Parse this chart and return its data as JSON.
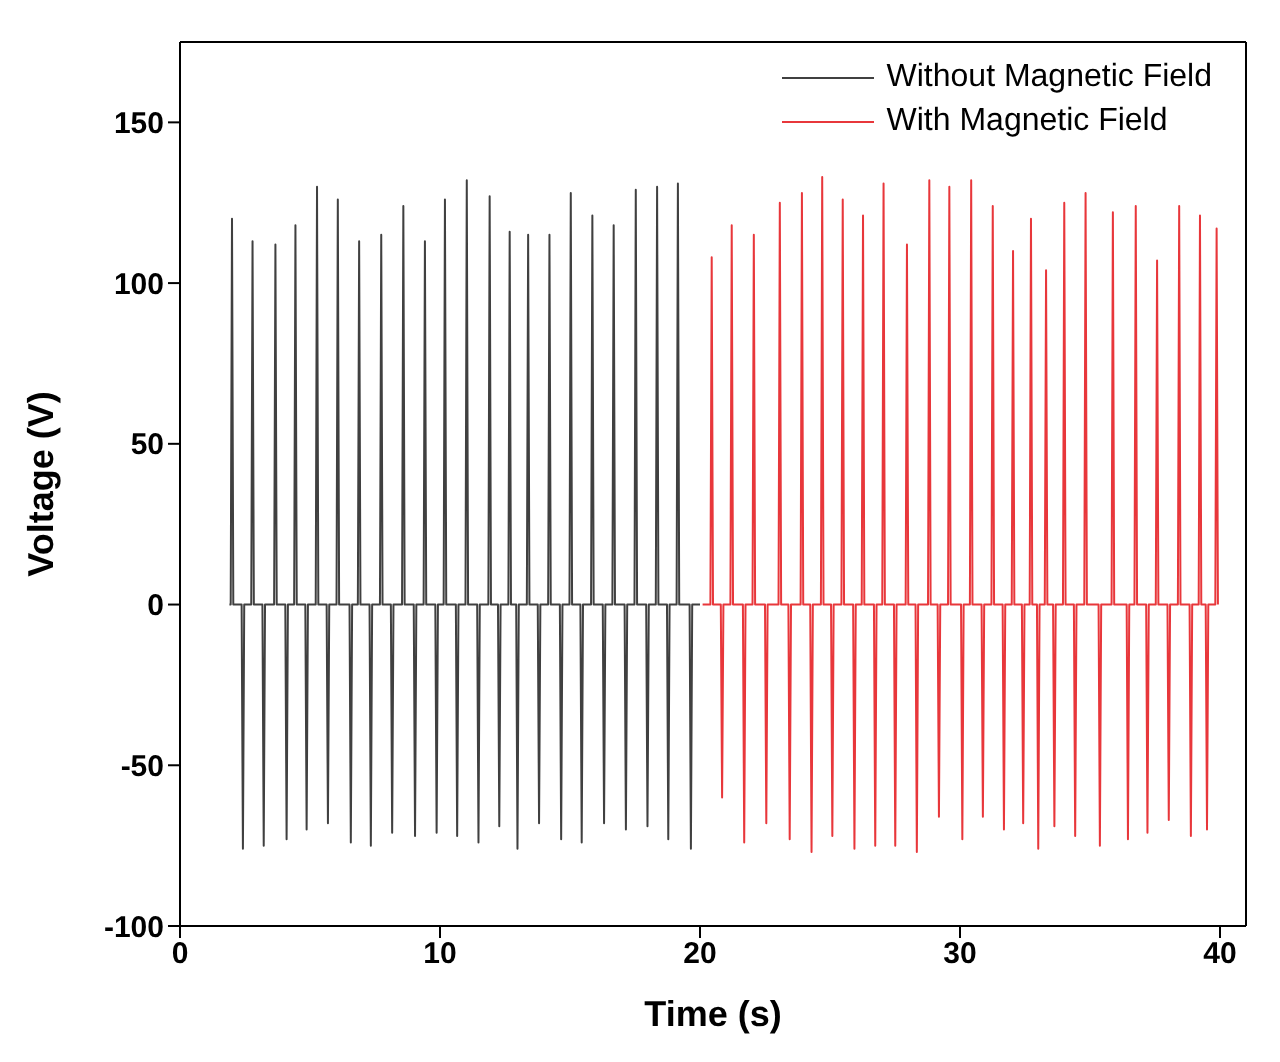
{
  "chart_data": {
    "type": "line",
    "xlabel": "Time (s)",
    "ylabel": "Voltage (V)",
    "xlim": [
      0,
      41
    ],
    "ylim": [
      -100,
      175
    ],
    "xticks": [
      0,
      10,
      20,
      30,
      40
    ],
    "yticks": [
      -100,
      -50,
      0,
      50,
      100,
      150
    ],
    "legend": "top right",
    "series": [
      {
        "name": "Without Magnetic Field",
        "color": "#404040",
        "x": [
          1.9,
          1.95,
          2.0,
          2.05,
          2.37,
          2.42,
          2.47,
          2.74,
          2.79,
          2.84,
          3.17,
          3.22,
          3.27,
          3.62,
          3.67,
          3.72,
          4.05,
          4.1,
          4.15,
          4.39,
          4.44,
          4.49,
          4.82,
          4.87,
          4.92,
          5.22,
          5.27,
          5.32,
          5.64,
          5.69,
          5.74,
          6.02,
          6.07,
          6.12,
          6.52,
          6.57,
          6.62,
          6.84,
          6.89,
          6.94,
          7.29,
          7.34,
          7.39,
          7.69,
          7.74,
          7.79,
          8.11,
          8.16,
          8.21,
          8.54,
          8.59,
          8.64,
          8.99,
          9.04,
          9.09,
          9.37,
          9.42,
          9.47,
          9.82,
          9.87,
          9.92,
          10.14,
          10.19,
          10.24,
          10.61,
          10.66,
          10.71,
          10.98,
          11.03,
          11.08,
          11.43,
          11.48,
          11.53,
          11.86,
          11.91,
          11.96,
          12.23,
          12.28,
          12.33,
          12.63,
          12.68,
          12.73,
          12.93,
          12.98,
          13.03,
          13.34,
          13.39,
          13.44,
          13.76,
          13.81,
          13.86,
          14.16,
          14.21,
          14.26,
          14.61,
          14.66,
          14.71,
          14.98,
          15.03,
          15.08,
          15.4,
          15.45,
          15.5,
          15.81,
          15.86,
          15.91,
          16.26,
          16.31,
          16.36,
          16.63,
          16.68,
          16.73,
          17.1,
          17.15,
          17.2,
          17.48,
          17.53,
          17.58,
          17.93,
          17.98,
          18.03,
          18.3,
          18.35,
          18.4,
          18.73,
          18.78,
          18.83,
          19.1,
          19.15,
          19.2,
          19.6,
          19.65,
          19.7,
          20.0
        ],
        "values": [
          0,
          0,
          120,
          0,
          0,
          -76,
          0,
          0,
          113,
          0,
          0,
          -75,
          0,
          0,
          112,
          0,
          0,
          -73,
          0,
          0,
          118,
          0,
          0,
          -70,
          0,
          0,
          130,
          0,
          0,
          -68,
          0,
          0,
          126,
          0,
          0,
          -74,
          0,
          0,
          113,
          0,
          0,
          -75,
          0,
          0,
          115,
          0,
          0,
          -71,
          0,
          0,
          124,
          0,
          0,
          -72,
          0,
          0,
          113,
          0,
          0,
          -71,
          0,
          0,
          126,
          0,
          0,
          -72,
          0,
          0,
          132,
          0,
          0,
          -74,
          0,
          0,
          127,
          0,
          0,
          -69,
          0,
          0,
          116,
          0,
          0,
          -76,
          0,
          0,
          115,
          0,
          0,
          -68,
          0,
          0,
          115,
          0,
          0,
          -73,
          0,
          0,
          128,
          0,
          0,
          -74,
          0,
          0,
          121,
          0,
          0,
          -68,
          0,
          0,
          118,
          0,
          0,
          -70,
          0,
          0,
          129,
          0,
          0,
          -69,
          0,
          0,
          130,
          0,
          0,
          -73,
          0,
          0,
          131,
          0,
          0,
          -76,
          0,
          0
        ]
      },
      {
        "name": "With Magnetic Field",
        "color": "#e8373b",
        "x": [
          20.1,
          20.4,
          20.45,
          20.5,
          20.8,
          20.85,
          20.9,
          21.17,
          21.22,
          21.27,
          21.65,
          21.7,
          21.75,
          22.02,
          22.07,
          22.12,
          22.5,
          22.55,
          22.6,
          23.02,
          23.07,
          23.12,
          23.4,
          23.45,
          23.5,
          23.87,
          23.92,
          23.97,
          24.24,
          24.29,
          24.34,
          24.65,
          24.7,
          24.75,
          25.04,
          25.09,
          25.14,
          25.44,
          25.49,
          25.54,
          25.89,
          25.94,
          25.99,
          26.22,
          26.27,
          26.32,
          26.69,
          26.74,
          26.79,
          27.01,
          27.06,
          27.11,
          27.46,
          27.51,
          27.56,
          27.91,
          27.96,
          28.01,
          28.29,
          28.34,
          28.39,
          28.77,
          28.82,
          28.87,
          29.14,
          29.19,
          29.24,
          29.54,
          29.59,
          29.64,
          30.04,
          30.09,
          30.14,
          30.38,
          30.43,
          30.48,
          30.83,
          30.88,
          30.93,
          31.21,
          31.26,
          31.31,
          31.64,
          31.69,
          31.74,
          31.99,
          32.04,
          32.09,
          32.38,
          32.43,
          32.48,
          32.68,
          32.73,
          32.78,
          32.96,
          33.01,
          33.06,
          33.26,
          33.31,
          33.36,
          33.58,
          33.63,
          33.68,
          33.96,
          34.01,
          34.06,
          34.38,
          34.43,
          34.48,
          34.78,
          34.83,
          34.88,
          35.33,
          35.38,
          35.43,
          35.83,
          35.88,
          35.93,
          36.41,
          36.46,
          36.51,
          36.71,
          36.76,
          36.81,
          37.16,
          37.21,
          37.26,
          37.53,
          37.58,
          37.63,
          37.98,
          38.03,
          38.08,
          38.38,
          38.43,
          38.48,
          38.83,
          38.88,
          38.93,
          39.18,
          39.23,
          39.28,
          39.45,
          39.5,
          39.55,
          39.82,
          39.87,
          39.92
        ],
        "values": [
          0,
          0,
          108,
          0,
          0,
          -60,
          0,
          0,
          118,
          0,
          0,
          -74,
          0,
          0,
          115,
          0,
          0,
          -68,
          0,
          0,
          125,
          0,
          0,
          -73,
          0,
          0,
          128,
          0,
          0,
          -77,
          0,
          0,
          133,
          0,
          0,
          -72,
          0,
          0,
          126,
          0,
          0,
          -76,
          0,
          0,
          121,
          0,
          0,
          -75,
          0,
          0,
          131,
          0,
          0,
          -75,
          0,
          0,
          112,
          0,
          0,
          -77,
          0,
          0,
          132,
          0,
          0,
          -66,
          0,
          0,
          130,
          0,
          0,
          -73,
          0,
          0,
          132,
          0,
          0,
          -66,
          0,
          0,
          124,
          0,
          0,
          -70,
          0,
          0,
          110,
          0,
          0,
          -68,
          0,
          0,
          120,
          0,
          0,
          -76,
          0,
          0,
          104,
          0,
          0,
          -69,
          0,
          0,
          125,
          0,
          0,
          -72,
          0,
          0,
          128,
          0,
          0,
          -75,
          0,
          0,
          122,
          0,
          0,
          -73,
          0,
          0,
          124,
          0,
          0,
          -71,
          0,
          0,
          107,
          0,
          0,
          -67,
          0,
          0,
          124,
          0,
          0,
          -72,
          0,
          0,
          121,
          0,
          0,
          -70,
          0,
          0,
          117,
          0
        ]
      }
    ]
  }
}
